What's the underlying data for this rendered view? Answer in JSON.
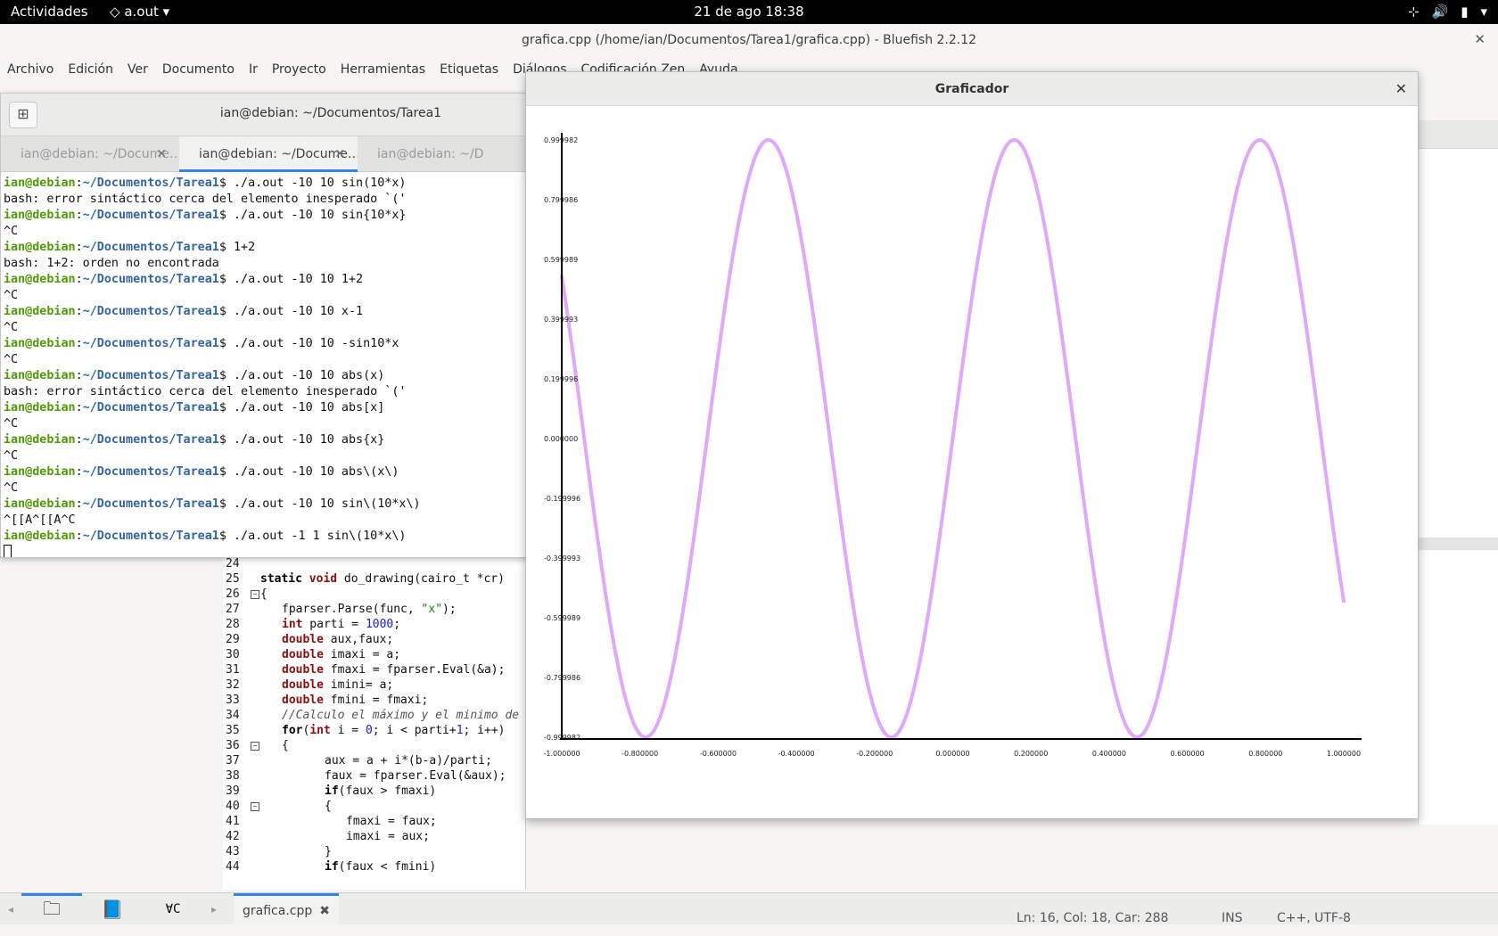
{
  "topbar": {
    "activities": "Actividades",
    "app_name": "a.out",
    "clock": "21 de ago  18:38"
  },
  "bluefish": {
    "title": "grafica.cpp (/home/ian/Documentos/Tarea1/grafica.cpp) - Bluefish 2.2.12",
    "menu": [
      "Archivo",
      "Edición",
      "Ver",
      "Documento",
      "Ir",
      "Proyecto",
      "Herramientas",
      "Etiquetas",
      "Diálogos",
      "Codificación Zen",
      "Ayuda"
    ],
    "editor_lines": [
      {
        "n": "24",
        "fold": "",
        "indent": 0,
        "html": ""
      },
      {
        "n": "25",
        "fold": "",
        "indent": 0,
        "html": "<span class='kw'>static</span> <span class='ty'>void</span> do_drawing(cairo_t *cr)"
      },
      {
        "n": "26",
        "fold": "⊟",
        "indent": 0,
        "html": "{"
      },
      {
        "n": "27",
        "fold": "",
        "indent": 1,
        "html": "fparser.Parse(func, <span class='str'>\"x\"</span>);"
      },
      {
        "n": "28",
        "fold": "",
        "indent": 1,
        "html": "<span class='ty'>int</span> parti = <span class='num'>1000</span>;"
      },
      {
        "n": "29",
        "fold": "",
        "indent": 1,
        "html": "<span class='ty'>double</span> aux,faux;"
      },
      {
        "n": "30",
        "fold": "",
        "indent": 1,
        "html": "<span class='ty'>double</span> imaxi = a;"
      },
      {
        "n": "31",
        "fold": "",
        "indent": 1,
        "html": "<span class='ty'>double</span> fmaxi = fparser.Eval(&amp;a);"
      },
      {
        "n": "32",
        "fold": "",
        "indent": 1,
        "html": "<span class='ty'>double</span> imini= a;"
      },
      {
        "n": "33",
        "fold": "",
        "indent": 1,
        "html": "<span class='ty'>double</span> fmini = fmaxi;"
      },
      {
        "n": "34",
        "fold": "",
        "indent": 1,
        "html": "<span class='cm'>//Calculo el máximo y el minimo de</span>"
      },
      {
        "n": "35",
        "fold": "",
        "indent": 1,
        "html": "<span class='kw'>for</span>(<span class='ty'>int</span> i = <span class='num'>0</span>; i &lt; parti+<span class='num'>1</span>; i++)"
      },
      {
        "n": "36",
        "fold": "⊟",
        "indent": 1,
        "html": "{"
      },
      {
        "n": "37",
        "fold": "",
        "indent": 3,
        "html": "aux = a + i*(b-a)/parti;"
      },
      {
        "n": "38",
        "fold": "",
        "indent": 3,
        "html": "faux = fparser.Eval(&amp;aux);"
      },
      {
        "n": "39",
        "fold": "",
        "indent": 3,
        "html": "<span class='kw'>if</span>(faux &gt; fmaxi)"
      },
      {
        "n": "40",
        "fold": "⊟",
        "indent": 3,
        "html": "{"
      },
      {
        "n": "41",
        "fold": "",
        "indent": 4,
        "html": "fmaxi = faux;"
      },
      {
        "n": "42",
        "fold": "",
        "indent": 4,
        "html": "imaxi = aux;"
      },
      {
        "n": "43",
        "fold": "",
        "indent": 3,
        "html": "}"
      },
      {
        "n": "44",
        "fold": "",
        "indent": 3,
        "html": "<span class='kw'>if</span>(faux &lt; fmini)"
      }
    ],
    "doc_tab": "grafica.cpp",
    "status": {
      "position": "Ln: 16, Col: 18, Car: 288",
      "mode": "INS",
      "encoding": "C++, UTF-8"
    }
  },
  "terminal": {
    "title": "ian@debian: ~/Documentos/Tarea1",
    "tabs": [
      "ian@debian: ~/Docume…",
      "ian@debian: ~/Docume…",
      "ian@debian: ~/D"
    ],
    "prompt_user": "ian@debian",
    "prompt_path": "~/Documentos/Tarea1",
    "lines": [
      {
        "p": true,
        "t": "$ ./a.out -10 10 sin(10*x)"
      },
      {
        "p": false,
        "t": "bash: error sintáctico cerca del elemento inesperado `('"
      },
      {
        "p": true,
        "t": "$ ./a.out -10 10 sin{10*x}"
      },
      {
        "p": false,
        "t": "^C"
      },
      {
        "p": true,
        "t": "$ 1+2"
      },
      {
        "p": false,
        "t": "bash: 1+2: orden no encontrada"
      },
      {
        "p": true,
        "t": "$ ./a.out -10 10 1+2"
      },
      {
        "p": false,
        "t": "^C"
      },
      {
        "p": true,
        "t": "$ ./a.out -10 10 x-1"
      },
      {
        "p": false,
        "t": "^C"
      },
      {
        "p": true,
        "t": "$ ./a.out -10 10 -sin10*x"
      },
      {
        "p": false,
        "t": "^C"
      },
      {
        "p": true,
        "t": "$ ./a.out -10 10 abs(x)"
      },
      {
        "p": false,
        "t": "bash: error sintáctico cerca del elemento inesperado `('"
      },
      {
        "p": true,
        "t": "$ ./a.out -10 10 abs[x]"
      },
      {
        "p": false,
        "t": "^C"
      },
      {
        "p": true,
        "t": "$ ./a.out -10 10 abs{x}"
      },
      {
        "p": false,
        "t": "^C"
      },
      {
        "p": true,
        "t": "$ ./a.out -10 10 abs\\(x\\)"
      },
      {
        "p": false,
        "t": "^C"
      },
      {
        "p": true,
        "t": "$ ./a.out -10 10 sin\\(10*x\\)"
      },
      {
        "p": false,
        "t": "^[[A^[[A^C"
      },
      {
        "p": true,
        "t": "$ ./a.out -1 1 sin\\(10*x\\)"
      }
    ]
  },
  "graficador": {
    "title": "Graficador",
    "chart_data": {
      "type": "line",
      "function": "sin(10*x)",
      "xlim": [
        -1.0,
        1.0
      ],
      "ylim": [
        -0.999982,
        0.999982
      ],
      "xticks": [
        "-1.000000",
        "-0.800000",
        "-0.600000",
        "-0.400000",
        "-0.200000",
        "0.000000",
        "0.200000",
        "0.400000",
        "0.600000",
        "0.800000",
        "1.000000"
      ],
      "xtick_values": [
        -1.0,
        -0.8,
        -0.6,
        -0.4,
        -0.2,
        0.0,
        0.2,
        0.4,
        0.6,
        0.8,
        1.0
      ],
      "yticks": [
        "0.999982",
        "0.799986",
        "0.599989",
        "0.399993",
        "0.199996",
        "0.000000",
        "-0.199996",
        "-0.399993",
        "-0.599989",
        "-0.799986",
        "-0.999982"
      ],
      "ytick_values": [
        0.999982,
        0.799986,
        0.599989,
        0.399993,
        0.199996,
        0.0,
        -0.199996,
        -0.399993,
        -0.599989,
        -0.799986,
        -0.999982
      ],
      "line_color": "#e0a8f8",
      "grid": false
    }
  }
}
